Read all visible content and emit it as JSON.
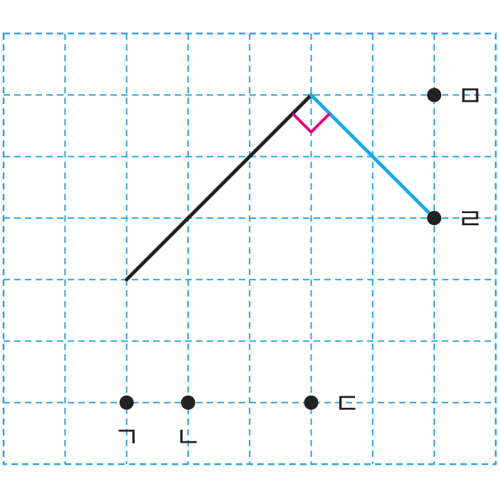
{
  "colors": {
    "grid": "#2aa3dc",
    "segment_main": "#222222",
    "segment_answer": "#1ea7e4",
    "right_angle_mark": "#e5007e",
    "point": "#222222"
  },
  "grid": {
    "columns": 8,
    "rows": 7,
    "line_style": "dashed"
  },
  "diagram": {
    "vertex": {
      "col": 5,
      "row": 1
    },
    "segments": [
      {
        "from": {
          "col": 2,
          "row": 4
        },
        "to": {
          "col": 5,
          "row": 1
        },
        "style": "segment_main"
      },
      {
        "from": {
          "col": 5,
          "row": 1
        },
        "to": {
          "col": 7,
          "row": 3
        },
        "style": "segment_answer"
      }
    ],
    "right_angle_at_vertex": true,
    "points": [
      {
        "label": "ㄱ",
        "col": 2,
        "row": 6,
        "label_side": "below"
      },
      {
        "label": "ㄴ",
        "col": 3,
        "row": 6,
        "label_side": "below"
      },
      {
        "label": "ㄷ",
        "col": 5,
        "row": 6,
        "label_side": "right"
      },
      {
        "label": "ㄹ",
        "col": 7,
        "row": 3,
        "label_side": "right"
      },
      {
        "label": "ㅁ",
        "col": 7,
        "row": 1,
        "label_side": "right"
      }
    ]
  }
}
